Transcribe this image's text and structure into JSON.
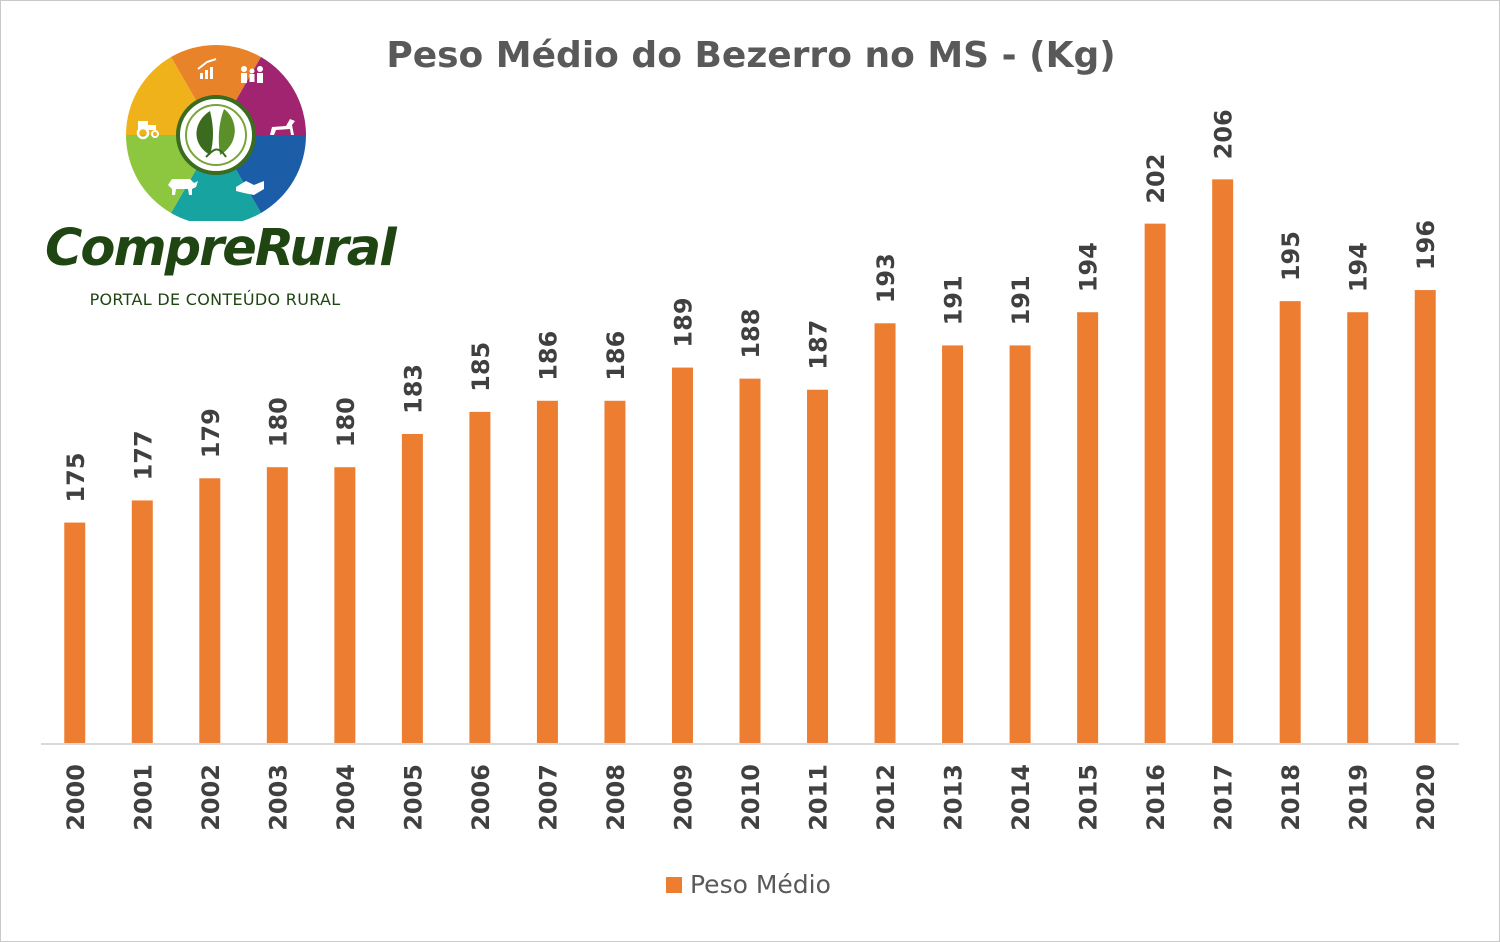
{
  "chart_data": {
    "type": "bar",
    "title": "Peso Médio do Bezerro no MS - (Kg)",
    "categories": [
      "2000",
      "2001",
      "2002",
      "2003",
      "2004",
      "2005",
      "2006",
      "2007",
      "2008",
      "2009",
      "2010",
      "2011",
      "2012",
      "2013",
      "2014",
      "2015",
      "2016",
      "2017",
      "2018",
      "2019",
      "2020"
    ],
    "series": [
      {
        "name": "Peso Médio",
        "values": [
          175,
          177,
          179,
          180,
          180,
          183,
          185,
          186,
          186,
          189,
          188,
          187,
          193,
          191,
          191,
          194,
          202,
          206,
          195,
          194,
          196
        ]
      }
    ],
    "ylim": [
      155,
      211
    ],
    "grid": false,
    "legend_position": "bottom",
    "data_labels": true,
    "bar_color": "#ED7D31"
  },
  "logo": {
    "name": "CompreRural",
    "tagline": "PORTAL DE CONTEÚDO RURAL",
    "colors": [
      "#E8832A",
      "#A0246F",
      "#1B5DA6",
      "#17A3A0",
      "#8DC63F",
      "#F0B21A"
    ],
    "text_color": "#1f4512",
    "icons": [
      "growth-chart-icon",
      "family-icon",
      "horse-icon",
      "handshake-icon",
      "cattle-icon",
      "tractor-icon",
      "leaf-icon"
    ]
  }
}
